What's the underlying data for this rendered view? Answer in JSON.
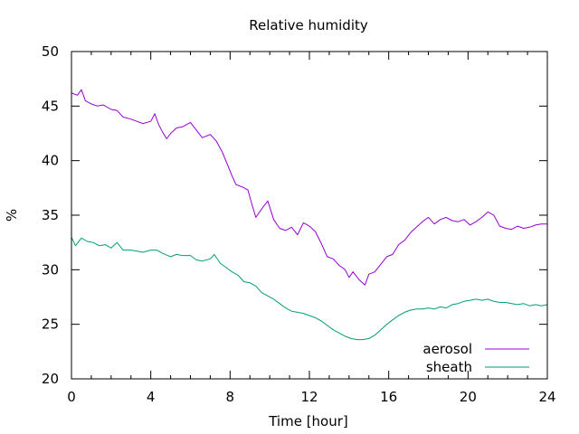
{
  "chart_data": {
    "type": "line",
    "title": "Relative humidity",
    "xlabel": "Time [hour]",
    "ylabel": "%",
    "xlim": [
      0,
      24
    ],
    "ylim": [
      20,
      50
    ],
    "x_ticks": [
      0,
      4,
      8,
      12,
      16,
      20,
      24
    ],
    "y_ticks": [
      20,
      25,
      30,
      35,
      40,
      45,
      50
    ],
    "grid": false,
    "legend_position": "bottom-right",
    "series": [
      {
        "name": "aerosol",
        "color": "#9400d3",
        "points": [
          [
            0.0,
            46.2
          ],
          [
            0.3,
            46.0
          ],
          [
            0.5,
            46.5
          ],
          [
            0.7,
            45.5
          ],
          [
            1.0,
            45.2
          ],
          [
            1.3,
            45.0
          ],
          [
            1.6,
            45.1
          ],
          [
            2.0,
            44.7
          ],
          [
            2.3,
            44.6
          ],
          [
            2.6,
            44.0
          ],
          [
            3.0,
            43.8
          ],
          [
            3.3,
            43.6
          ],
          [
            3.6,
            43.4
          ],
          [
            4.0,
            43.6
          ],
          [
            4.2,
            44.3
          ],
          [
            4.4,
            43.3
          ],
          [
            4.6,
            42.6
          ],
          [
            4.8,
            42.0
          ],
          [
            5.0,
            42.5
          ],
          [
            5.3,
            43.0
          ],
          [
            5.6,
            43.1
          ],
          [
            6.0,
            43.5
          ],
          [
            6.3,
            42.8
          ],
          [
            6.6,
            42.1
          ],
          [
            7.0,
            42.4
          ],
          [
            7.3,
            41.8
          ],
          [
            7.6,
            40.8
          ],
          [
            7.9,
            39.5
          ],
          [
            8.1,
            38.6
          ],
          [
            8.3,
            37.8
          ],
          [
            8.6,
            37.6
          ],
          [
            8.9,
            37.3
          ],
          [
            9.1,
            36.0
          ],
          [
            9.3,
            34.8
          ],
          [
            9.6,
            35.6
          ],
          [
            9.9,
            36.3
          ],
          [
            10.2,
            34.6
          ],
          [
            10.5,
            33.8
          ],
          [
            10.8,
            33.6
          ],
          [
            11.1,
            33.9
          ],
          [
            11.4,
            33.2
          ],
          [
            11.7,
            34.3
          ],
          [
            12.0,
            34.0
          ],
          [
            12.3,
            33.5
          ],
          [
            12.6,
            32.4
          ],
          [
            12.9,
            31.2
          ],
          [
            13.2,
            31.0
          ],
          [
            13.5,
            30.4
          ],
          [
            13.8,
            30.0
          ],
          [
            14.0,
            29.3
          ],
          [
            14.2,
            29.8
          ],
          [
            14.5,
            29.1
          ],
          [
            14.8,
            28.6
          ],
          [
            15.0,
            29.6
          ],
          [
            15.3,
            29.8
          ],
          [
            15.6,
            30.5
          ],
          [
            15.9,
            31.2
          ],
          [
            16.2,
            31.4
          ],
          [
            16.5,
            32.3
          ],
          [
            16.8,
            32.7
          ],
          [
            17.1,
            33.4
          ],
          [
            17.4,
            33.9
          ],
          [
            17.7,
            34.4
          ],
          [
            18.0,
            34.8
          ],
          [
            18.3,
            34.2
          ],
          [
            18.6,
            34.6
          ],
          [
            18.9,
            34.8
          ],
          [
            19.2,
            34.5
          ],
          [
            19.5,
            34.4
          ],
          [
            19.8,
            34.6
          ],
          [
            20.1,
            34.1
          ],
          [
            20.4,
            34.4
          ],
          [
            20.7,
            34.8
          ],
          [
            21.0,
            35.3
          ],
          [
            21.3,
            35.0
          ],
          [
            21.6,
            34.0
          ],
          [
            21.9,
            33.8
          ],
          [
            22.2,
            33.7
          ],
          [
            22.5,
            34.0
          ],
          [
            22.8,
            33.8
          ],
          [
            23.1,
            33.9
          ],
          [
            23.4,
            34.1
          ],
          [
            23.7,
            34.2
          ],
          [
            24.0,
            34.2
          ]
        ]
      },
      {
        "name": "sheath",
        "color": "#009e73",
        "points": [
          [
            0.0,
            33.0
          ],
          [
            0.2,
            32.2
          ],
          [
            0.5,
            32.9
          ],
          [
            0.8,
            32.6
          ],
          [
            1.1,
            32.5
          ],
          [
            1.4,
            32.2
          ],
          [
            1.7,
            32.3
          ],
          [
            2.0,
            32.0
          ],
          [
            2.3,
            32.5
          ],
          [
            2.6,
            31.8
          ],
          [
            3.0,
            31.8
          ],
          [
            3.3,
            31.7
          ],
          [
            3.6,
            31.6
          ],
          [
            4.0,
            31.8
          ],
          [
            4.3,
            31.8
          ],
          [
            4.6,
            31.5
          ],
          [
            5.0,
            31.2
          ],
          [
            5.3,
            31.4
          ],
          [
            5.6,
            31.3
          ],
          [
            6.0,
            31.3
          ],
          [
            6.3,
            30.9
          ],
          [
            6.6,
            30.8
          ],
          [
            7.0,
            31.0
          ],
          [
            7.2,
            31.4
          ],
          [
            7.5,
            30.6
          ],
          [
            7.8,
            30.2
          ],
          [
            8.1,
            29.8
          ],
          [
            8.4,
            29.5
          ],
          [
            8.7,
            28.9
          ],
          [
            9.0,
            28.8
          ],
          [
            9.3,
            28.5
          ],
          [
            9.6,
            27.9
          ],
          [
            9.9,
            27.6
          ],
          [
            10.2,
            27.3
          ],
          [
            10.5,
            26.9
          ],
          [
            10.8,
            26.5
          ],
          [
            11.1,
            26.2
          ],
          [
            11.4,
            26.1
          ],
          [
            11.7,
            26.0
          ],
          [
            12.0,
            25.8
          ],
          [
            12.3,
            25.6
          ],
          [
            12.6,
            25.3
          ],
          [
            12.9,
            24.9
          ],
          [
            13.2,
            24.5
          ],
          [
            13.5,
            24.2
          ],
          [
            13.8,
            23.9
          ],
          [
            14.1,
            23.7
          ],
          [
            14.4,
            23.6
          ],
          [
            14.7,
            23.6
          ],
          [
            15.0,
            23.7
          ],
          [
            15.3,
            24.0
          ],
          [
            15.6,
            24.5
          ],
          [
            15.9,
            25.0
          ],
          [
            16.2,
            25.4
          ],
          [
            16.5,
            25.8
          ],
          [
            16.8,
            26.1
          ],
          [
            17.1,
            26.3
          ],
          [
            17.4,
            26.4
          ],
          [
            17.7,
            26.4
          ],
          [
            18.0,
            26.5
          ],
          [
            18.3,
            26.4
          ],
          [
            18.6,
            26.6
          ],
          [
            18.9,
            26.5
          ],
          [
            19.2,
            26.8
          ],
          [
            19.5,
            26.9
          ],
          [
            19.8,
            27.1
          ],
          [
            20.1,
            27.2
          ],
          [
            20.4,
            27.3
          ],
          [
            20.7,
            27.2
          ],
          [
            21.0,
            27.3
          ],
          [
            21.3,
            27.1
          ],
          [
            21.6,
            27.0
          ],
          [
            21.9,
            27.0
          ],
          [
            22.2,
            26.9
          ],
          [
            22.5,
            26.8
          ],
          [
            22.8,
            26.9
          ],
          [
            23.1,
            26.7
          ],
          [
            23.4,
            26.8
          ],
          [
            23.7,
            26.7
          ],
          [
            24.0,
            26.8
          ]
        ]
      }
    ]
  }
}
